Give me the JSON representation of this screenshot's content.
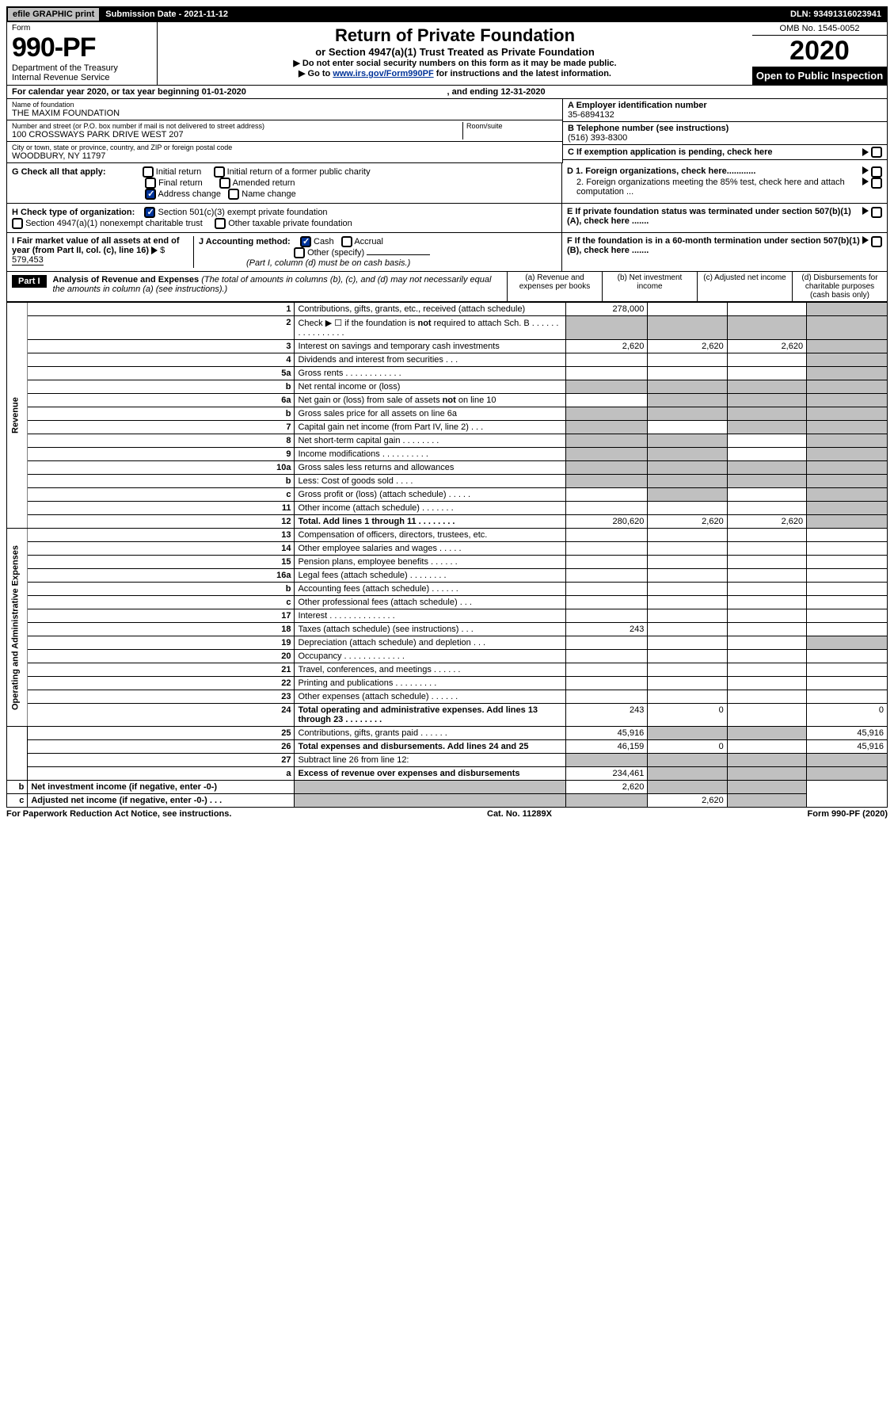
{
  "top": {
    "efile": "efile GRAPHIC print",
    "submission": "Submission Date - 2021-11-12",
    "dln": "DLN: 93491316023941"
  },
  "header": {
    "form_label": "Form",
    "form_num": "990-PF",
    "dept": "Department of the Treasury\nInternal Revenue Service",
    "title_main": "Return of Private Foundation",
    "title_sub": "or Section 4947(a)(1) Trust Treated as Private Foundation",
    "note1": "▶ Do not enter social security numbers on this form as it may be made public.",
    "note2_pre": "▶ Go to ",
    "note2_link": "www.irs.gov/Form990PF",
    "note2_post": " for instructions and the latest information.",
    "omb": "OMB No. 1545-0052",
    "year": "2020",
    "open": "Open to Public Inspection"
  },
  "calendar": {
    "text": "For calendar year 2020, or tax year beginning 01-01-2020",
    "ending": ", and ending 12-31-2020"
  },
  "info": {
    "name_label": "Name of foundation",
    "name": "THE MAXIM FOUNDATION",
    "addr_label": "Number and street (or P.O. box number if mail is not delivered to street address)",
    "addr": "100 CROSSWAYS PARK DRIVE WEST 207",
    "room_label": "Room/suite",
    "city_label": "City or town, state or province, country, and ZIP or foreign postal code",
    "city": "WOODBURY, NY  11797",
    "a_label": "A Employer identification number",
    "a_val": "35-6894132",
    "b_label": "B Telephone number (see instructions)",
    "b_val": "(516) 393-8300",
    "c_label": "C If exemption application is pending, check here",
    "d1_label": "D 1. Foreign organizations, check here............",
    "d2_label": "2. Foreign organizations meeting the 85% test, check here and attach computation ...",
    "e_label": "E  If private foundation status was terminated under section 507(b)(1)(A), check here .......",
    "f_label": "F  If the foundation is in a 60-month termination under section 507(b)(1)(B), check here ......."
  },
  "g": {
    "label": "G Check all that apply:",
    "opts": [
      "Initial return",
      "Final return",
      "Address change",
      "Initial return of a former public charity",
      "Amended return",
      "Name change"
    ]
  },
  "h": {
    "label": "H Check type of organization:",
    "opt1": "Section 501(c)(3) exempt private foundation",
    "opt2": "Section 4947(a)(1) nonexempt charitable trust",
    "opt3": "Other taxable private foundation"
  },
  "i": {
    "label": "I Fair market value of all assets at end of year (from Part II, col. (c), line 16)",
    "val": "579,453"
  },
  "j": {
    "label": "J Accounting method:",
    "cash": "Cash",
    "accrual": "Accrual",
    "other": "Other (specify)",
    "note": "(Part I, column (d) must be on cash basis.)"
  },
  "part1": {
    "label": "Part I",
    "title": "Analysis of Revenue and Expenses",
    "note": "(The total of amounts in columns (b), (c), and (d) may not necessarily equal the amounts in column (a) (see instructions).)",
    "cols": {
      "a": "(a)   Revenue and expenses per books",
      "b": "(b)   Net investment income",
      "c": "(c)   Adjusted net income",
      "d": "(d)   Disbursements for charitable purposes (cash basis only)"
    }
  },
  "sections": {
    "revenue": "Revenue",
    "expenses": "Operating and Administrative Expenses"
  },
  "rows": [
    {
      "n": "1",
      "desc": "Contributions, gifts, grants, etc., received (attach schedule)",
      "a": "278,000",
      "b": "",
      "c": "",
      "d": "",
      "d_gray": true
    },
    {
      "n": "2",
      "desc": "Check ▶ ☐ if the foundation is not required to attach Sch. B   .  .  .  .  .  .  .  .  .  .  .  .  .  .  .  .",
      "a": "",
      "b": "",
      "c": "",
      "d": "",
      "all_gray": true
    },
    {
      "n": "3",
      "desc": "Interest on savings and temporary cash investments",
      "a": "2,620",
      "b": "2,620",
      "c": "2,620",
      "d": "",
      "d_gray": true
    },
    {
      "n": "4",
      "desc": "Dividends and interest from securities    .   .   .",
      "a": "",
      "b": "",
      "c": "",
      "d": "",
      "d_gray": true
    },
    {
      "n": "5a",
      "desc": "Gross rents      .   .   .   .   .   .   .   .   .   .   .   .",
      "a": "",
      "b": "",
      "c": "",
      "d": "",
      "d_gray": true
    },
    {
      "n": "b",
      "desc": "Net rental income or (loss)",
      "a": "",
      "b": "",
      "c": "",
      "d": "",
      "all_gray": true,
      "inset_box": true
    },
    {
      "n": "6a",
      "desc": "Net gain or (loss) from sale of assets not on line 10",
      "a": "",
      "b": "",
      "c": "",
      "d": "",
      "bcd_gray": true
    },
    {
      "n": "b",
      "desc": "Gross sales price for all assets on line 6a",
      "a": "",
      "b": "",
      "c": "",
      "d": "",
      "all_gray": true,
      "inset_line": true
    },
    {
      "n": "7",
      "desc": "Capital gain net income (from Part IV, line 2)    .   .   .",
      "a": "",
      "b": "",
      "c": "",
      "d": "",
      "a_gray": true,
      "cd_gray": true
    },
    {
      "n": "8",
      "desc": "Net short-term capital gain  .   .   .   .   .   .   .   .",
      "a": "",
      "b": "",
      "c": "",
      "d": "",
      "ab_gray": true,
      "d_gray": true
    },
    {
      "n": "9",
      "desc": "Income modifications  .   .   .   .   .   .   .   .   .   .",
      "a": "",
      "b": "",
      "c": "",
      "d": "",
      "ab_gray": true,
      "d_gray": true
    },
    {
      "n": "10a",
      "desc": "Gross sales less returns and allowances",
      "a": "",
      "b": "",
      "c": "",
      "d": "",
      "all_gray": true,
      "inset_box": true
    },
    {
      "n": "b",
      "desc": "Less: Cost of goods sold      .   .   .   .",
      "a": "",
      "b": "",
      "c": "",
      "d": "",
      "all_gray": true,
      "inset_box": true
    },
    {
      "n": "c",
      "desc": "Gross profit or (loss) (attach schedule)     .   .   .   .   .",
      "a": "",
      "b": "",
      "c": "",
      "d": "",
      "b_gray": true,
      "d_gray": true
    },
    {
      "n": "11",
      "desc": "Other income (attach schedule)    .   .   .   .   .   .   .",
      "a": "",
      "b": "",
      "c": "",
      "d": "",
      "d_gray": true
    },
    {
      "n": "12",
      "desc": "Total. Add lines 1 through 11   .   .   .   .   .   .   .   .",
      "bold": true,
      "a": "280,620",
      "b": "2,620",
      "c": "2,620",
      "d": "",
      "d_gray": true
    },
    {
      "n": "13",
      "desc": "Compensation of officers, directors, trustees, etc.",
      "a": "",
      "b": "",
      "c": "",
      "d": ""
    },
    {
      "n": "14",
      "desc": "Other employee salaries and wages    .   .   .   .   .",
      "a": "",
      "b": "",
      "c": "",
      "d": ""
    },
    {
      "n": "15",
      "desc": "Pension plans, employee benefits  .   .   .   .   .   .",
      "a": "",
      "b": "",
      "c": "",
      "d": ""
    },
    {
      "n": "16a",
      "desc": "Legal fees (attach schedule) .   .   .   .   .   .   .   .",
      "a": "",
      "b": "",
      "c": "",
      "d": ""
    },
    {
      "n": "b",
      "desc": "Accounting fees (attach schedule)  .   .   .   .   .   .",
      "a": "",
      "b": "",
      "c": "",
      "d": ""
    },
    {
      "n": "c",
      "desc": "Other professional fees (attach schedule)    .   .   .",
      "a": "",
      "b": "",
      "c": "",
      "d": ""
    },
    {
      "n": "17",
      "desc": "Interest  .   .   .   .   .   .   .   .   .   .   .   .   .   .",
      "a": "",
      "b": "",
      "c": "",
      "d": ""
    },
    {
      "n": "18",
      "desc": "Taxes (attach schedule) (see instructions)      .   .   .",
      "a": "243",
      "b": "",
      "c": "",
      "d": ""
    },
    {
      "n": "19",
      "desc": "Depreciation (attach schedule) and depletion    .   .   .",
      "a": "",
      "b": "",
      "c": "",
      "d": "",
      "d_gray": true
    },
    {
      "n": "20",
      "desc": "Occupancy .   .   .   .   .   .   .   .   .   .   .   .   .",
      "a": "",
      "b": "",
      "c": "",
      "d": ""
    },
    {
      "n": "21",
      "desc": "Travel, conferences, and meetings  .   .   .   .   .   .",
      "a": "",
      "b": "",
      "c": "",
      "d": ""
    },
    {
      "n": "22",
      "desc": "Printing and publications  .   .   .   .   .   .   .   .   .",
      "a": "",
      "b": "",
      "c": "",
      "d": ""
    },
    {
      "n": "23",
      "desc": "Other expenses (attach schedule)  .   .   .   .   .   .",
      "a": "",
      "b": "",
      "c": "",
      "d": ""
    },
    {
      "n": "24",
      "desc": "Total operating and administrative expenses. Add lines 13 through 23   .   .   .   .   .   .   .   .",
      "bold": true,
      "a": "243",
      "b": "0",
      "c": "",
      "d": "0"
    },
    {
      "n": "25",
      "desc": "Contributions, gifts, grants paid     .   .   .   .   .   .",
      "a": "45,916",
      "b": "",
      "c": "",
      "d": "45,916",
      "bc_gray": true
    },
    {
      "n": "26",
      "desc": "Total expenses and disbursements. Add lines 24 and 25",
      "bold": true,
      "a": "46,159",
      "b": "0",
      "c": "",
      "d": "45,916"
    },
    {
      "n": "27",
      "desc": "Subtract line 26 from line 12:",
      "a": "",
      "b": "",
      "c": "",
      "d": "",
      "all_gray": true
    },
    {
      "n": "a",
      "desc": "Excess of revenue over expenses and disbursements",
      "bold": true,
      "a": "234,461",
      "b": "",
      "c": "",
      "d": "",
      "bcd_gray": true
    },
    {
      "n": "b",
      "desc": "Net investment income (if negative, enter -0-)",
      "bold": true,
      "a": "",
      "b": "2,620",
      "c": "",
      "d": "",
      "a_gray": true,
      "cd_gray": true
    },
    {
      "n": "c",
      "desc": "Adjusted net income (if negative, enter -0-)   .   .   .",
      "bold": true,
      "a": "",
      "b": "",
      "c": "2,620",
      "d": "",
      "ab_gray": true,
      "d_gray": true
    }
  ],
  "footer": {
    "left": "For Paperwork Reduction Act Notice, see instructions.",
    "mid": "Cat. No. 11289X",
    "right": "Form 990-PF (2020)"
  }
}
